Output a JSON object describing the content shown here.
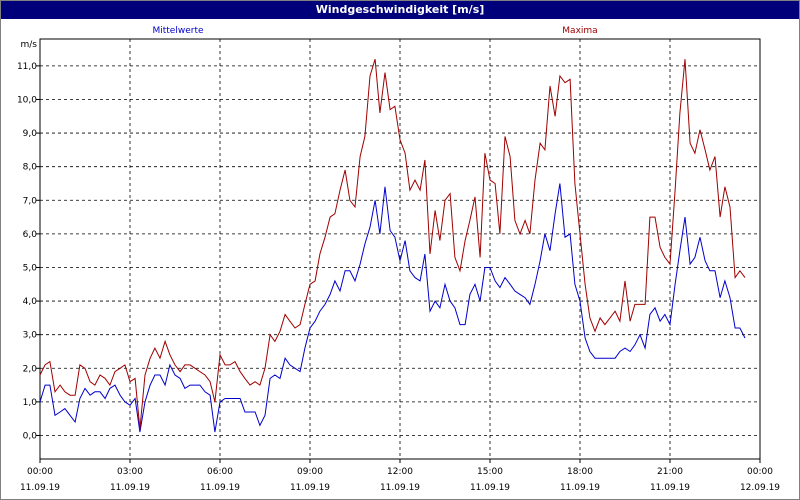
{
  "window": {
    "title": "Windgeschwindigkeit [m/s]"
  },
  "chart_data": {
    "type": "line",
    "title": "Windgeschwindigkeit [m/s]",
    "ylabel": "m/s",
    "ylim": [
      -0.7,
      11.8
    ],
    "yticks": [
      "0,0",
      "1,0",
      "2,0",
      "3,0",
      "4,0",
      "5,0",
      "6,0",
      "7,0",
      "8,0",
      "9,0",
      "10,0",
      "11,0"
    ],
    "xlim_hours": [
      0,
      24
    ],
    "xticks": [
      {
        "time": "00:00",
        "date": "11.09.19"
      },
      {
        "time": "03:00",
        "date": "11.09.19"
      },
      {
        "time": "06:00",
        "date": "11.09.19"
      },
      {
        "time": "09:00",
        "date": "11.09.19"
      },
      {
        "time": "12:00",
        "date": "11.09.19"
      },
      {
        "time": "15:00",
        "date": "11.09.19"
      },
      {
        "time": "18:00",
        "date": "11.09.19"
      },
      {
        "time": "21:00",
        "date": "11.09.19"
      },
      {
        "time": "00:00",
        "date": "12.09.19"
      }
    ],
    "grid": true,
    "series": [
      {
        "name": "Mittelwerte",
        "color": "#0000cc",
        "points": [
          [
            0,
            1.0
          ],
          [
            0.17,
            1.5
          ],
          [
            0.33,
            1.5
          ],
          [
            0.5,
            0.6
          ],
          [
            0.67,
            0.7
          ],
          [
            0.83,
            0.8
          ],
          [
            1.0,
            0.6
          ],
          [
            1.17,
            0.4
          ],
          [
            1.33,
            1.1
          ],
          [
            1.5,
            1.4
          ],
          [
            1.67,
            1.2
          ],
          [
            1.83,
            1.3
          ],
          [
            2.0,
            1.3
          ],
          [
            2.17,
            1.1
          ],
          [
            2.33,
            1.4
          ],
          [
            2.5,
            1.5
          ],
          [
            2.67,
            1.2
          ],
          [
            2.83,
            1.0
          ],
          [
            3.0,
            0.9
          ],
          [
            3.17,
            1.1
          ],
          [
            3.33,
            0.1
          ],
          [
            3.5,
            1.0
          ],
          [
            3.67,
            1.5
          ],
          [
            3.83,
            1.8
          ],
          [
            4.0,
            1.8
          ],
          [
            4.17,
            1.5
          ],
          [
            4.33,
            2.1
          ],
          [
            4.5,
            1.8
          ],
          [
            4.67,
            1.7
          ],
          [
            4.83,
            1.4
          ],
          [
            5.0,
            1.5
          ],
          [
            5.17,
            1.5
          ],
          [
            5.33,
            1.5
          ],
          [
            5.5,
            1.3
          ],
          [
            5.67,
            1.2
          ],
          [
            5.83,
            0.1
          ],
          [
            6.0,
            1.0
          ],
          [
            6.17,
            1.1
          ],
          [
            6.33,
            1.1
          ],
          [
            6.5,
            1.1
          ],
          [
            6.67,
            1.1
          ],
          [
            6.83,
            0.7
          ],
          [
            7.0,
            0.7
          ],
          [
            7.17,
            0.7
          ],
          [
            7.33,
            0.3
          ],
          [
            7.5,
            0.6
          ],
          [
            7.67,
            1.7
          ],
          [
            7.83,
            1.8
          ],
          [
            8.0,
            1.7
          ],
          [
            8.17,
            2.3
          ],
          [
            8.33,
            2.1
          ],
          [
            8.5,
            2.0
          ],
          [
            8.67,
            1.9
          ],
          [
            8.83,
            2.6
          ],
          [
            9.0,
            3.2
          ],
          [
            9.17,
            3.4
          ],
          [
            9.33,
            3.7
          ],
          [
            9.5,
            3.9
          ],
          [
            9.67,
            4.2
          ],
          [
            9.83,
            4.6
          ],
          [
            10.0,
            4.3
          ],
          [
            10.17,
            4.9
          ],
          [
            10.33,
            4.9
          ],
          [
            10.5,
            4.6
          ],
          [
            10.67,
            5.1
          ],
          [
            10.83,
            5.7
          ],
          [
            11.0,
            6.2
          ],
          [
            11.17,
            7.0
          ],
          [
            11.33,
            6.0
          ],
          [
            11.5,
            7.4
          ],
          [
            11.67,
            6.1
          ],
          [
            11.83,
            5.9
          ],
          [
            12.0,
            5.2
          ],
          [
            12.17,
            5.8
          ],
          [
            12.33,
            4.9
          ],
          [
            12.5,
            4.7
          ],
          [
            12.67,
            4.6
          ],
          [
            12.83,
            5.4
          ],
          [
            13.0,
            3.7
          ],
          [
            13.17,
            4.0
          ],
          [
            13.33,
            3.8
          ],
          [
            13.5,
            4.5
          ],
          [
            13.67,
            4.0
          ],
          [
            13.83,
            3.8
          ],
          [
            14.0,
            3.3
          ],
          [
            14.17,
            3.3
          ],
          [
            14.33,
            4.2
          ],
          [
            14.5,
            4.5
          ],
          [
            14.67,
            4.0
          ],
          [
            14.83,
            5.0
          ],
          [
            15.0,
            5.0
          ],
          [
            15.17,
            4.6
          ],
          [
            15.33,
            4.4
          ],
          [
            15.5,
            4.7
          ],
          [
            15.67,
            4.5
          ],
          [
            15.83,
            4.3
          ],
          [
            16.0,
            4.2
          ],
          [
            16.17,
            4.1
          ],
          [
            16.33,
            3.9
          ],
          [
            16.5,
            4.5
          ],
          [
            16.67,
            5.2
          ],
          [
            16.83,
            6.0
          ],
          [
            17.0,
            5.5
          ],
          [
            17.17,
            6.6
          ],
          [
            17.33,
            7.5
          ],
          [
            17.5,
            5.9
          ],
          [
            17.67,
            6.0
          ],
          [
            17.83,
            4.5
          ],
          [
            18.0,
            4.0
          ],
          [
            18.17,
            2.9
          ],
          [
            18.33,
            2.5
          ],
          [
            18.5,
            2.3
          ],
          [
            18.67,
            2.3
          ],
          [
            18.83,
            2.3
          ],
          [
            19.0,
            2.3
          ],
          [
            19.17,
            2.3
          ],
          [
            19.33,
            2.5
          ],
          [
            19.5,
            2.6
          ],
          [
            19.67,
            2.5
          ],
          [
            19.83,
            2.7
          ],
          [
            20.0,
            3.0
          ],
          [
            20.17,
            2.6
          ],
          [
            20.33,
            3.6
          ],
          [
            20.5,
            3.8
          ],
          [
            20.67,
            3.4
          ],
          [
            20.83,
            3.6
          ],
          [
            21.0,
            3.3
          ],
          [
            21.17,
            4.5
          ],
          [
            21.33,
            5.5
          ],
          [
            21.5,
            6.5
          ],
          [
            21.67,
            5.1
          ],
          [
            21.83,
            5.3
          ],
          [
            22.0,
            5.9
          ],
          [
            22.17,
            5.2
          ],
          [
            22.33,
            4.9
          ],
          [
            22.5,
            4.9
          ],
          [
            22.67,
            4.1
          ],
          [
            22.83,
            4.6
          ],
          [
            23.0,
            4.1
          ],
          [
            23.17,
            3.2
          ],
          [
            23.33,
            3.2
          ],
          [
            23.5,
            2.9
          ]
        ]
      },
      {
        "name": "Maxima",
        "color": "#a00000",
        "points": [
          [
            0,
            1.8
          ],
          [
            0.17,
            2.1
          ],
          [
            0.33,
            2.2
          ],
          [
            0.5,
            1.3
          ],
          [
            0.67,
            1.5
          ],
          [
            0.83,
            1.3
          ],
          [
            1.0,
            1.2
          ],
          [
            1.17,
            1.2
          ],
          [
            1.33,
            2.1
          ],
          [
            1.5,
            2.0
          ],
          [
            1.67,
            1.6
          ],
          [
            1.83,
            1.5
          ],
          [
            2.0,
            1.8
          ],
          [
            2.17,
            1.7
          ],
          [
            2.33,
            1.5
          ],
          [
            2.5,
            1.9
          ],
          [
            2.67,
            2.0
          ],
          [
            2.83,
            2.1
          ],
          [
            3.0,
            1.6
          ],
          [
            3.17,
            1.7
          ],
          [
            3.33,
            0.2
          ],
          [
            3.5,
            1.8
          ],
          [
            3.67,
            2.3
          ],
          [
            3.83,
            2.6
          ],
          [
            4.0,
            2.3
          ],
          [
            4.17,
            2.8
          ],
          [
            4.33,
            2.4
          ],
          [
            4.5,
            2.1
          ],
          [
            4.67,
            1.9
          ],
          [
            4.83,
            2.1
          ],
          [
            5.0,
            2.1
          ],
          [
            5.17,
            2.0
          ],
          [
            5.33,
            1.9
          ],
          [
            5.5,
            1.8
          ],
          [
            5.67,
            1.6
          ],
          [
            5.83,
            1.0
          ],
          [
            6.0,
            2.4
          ],
          [
            6.17,
            2.1
          ],
          [
            6.33,
            2.1
          ],
          [
            6.5,
            2.2
          ],
          [
            6.67,
            1.9
          ],
          [
            6.83,
            1.7
          ],
          [
            7.0,
            1.5
          ],
          [
            7.17,
            1.6
          ],
          [
            7.33,
            1.5
          ],
          [
            7.5,
            2.0
          ],
          [
            7.67,
            3.0
          ],
          [
            7.83,
            2.8
          ],
          [
            8.0,
            3.1
          ],
          [
            8.17,
            3.6
          ],
          [
            8.33,
            3.4
          ],
          [
            8.5,
            3.2
          ],
          [
            8.67,
            3.3
          ],
          [
            8.83,
            3.9
          ],
          [
            9.0,
            4.5
          ],
          [
            9.17,
            4.6
          ],
          [
            9.33,
            5.4
          ],
          [
            9.5,
            5.9
          ],
          [
            9.67,
            6.5
          ],
          [
            9.83,
            6.6
          ],
          [
            10.0,
            7.3
          ],
          [
            10.17,
            7.9
          ],
          [
            10.33,
            7.0
          ],
          [
            10.5,
            6.8
          ],
          [
            10.67,
            8.3
          ],
          [
            10.83,
            8.9
          ],
          [
            11.0,
            10.7
          ],
          [
            11.17,
            11.2
          ],
          [
            11.33,
            9.6
          ],
          [
            11.5,
            10.8
          ],
          [
            11.67,
            9.7
          ],
          [
            11.83,
            9.8
          ],
          [
            12.0,
            8.8
          ],
          [
            12.17,
            8.4
          ],
          [
            12.33,
            7.3
          ],
          [
            12.5,
            7.6
          ],
          [
            12.67,
            7.3
          ],
          [
            12.83,
            8.2
          ],
          [
            13.0,
            5.4
          ],
          [
            13.17,
            6.7
          ],
          [
            13.33,
            5.8
          ],
          [
            13.5,
            7.0
          ],
          [
            13.67,
            7.2
          ],
          [
            13.83,
            5.3
          ],
          [
            14.0,
            4.9
          ],
          [
            14.17,
            5.8
          ],
          [
            14.33,
            6.4
          ],
          [
            14.5,
            7.1
          ],
          [
            14.67,
            5.3
          ],
          [
            14.83,
            8.4
          ],
          [
            15.0,
            7.6
          ],
          [
            15.17,
            7.5
          ],
          [
            15.33,
            6.0
          ],
          [
            15.5,
            8.9
          ],
          [
            15.67,
            8.3
          ],
          [
            15.83,
            6.4
          ],
          [
            16.0,
            6.0
          ],
          [
            16.17,
            6.4
          ],
          [
            16.33,
            6.0
          ],
          [
            16.5,
            7.6
          ],
          [
            16.67,
            8.7
          ],
          [
            16.83,
            8.5
          ],
          [
            17.0,
            10.4
          ],
          [
            17.17,
            9.5
          ],
          [
            17.33,
            10.7
          ],
          [
            17.5,
            10.5
          ],
          [
            17.67,
            10.6
          ],
          [
            17.83,
            7.5
          ],
          [
            18.0,
            6.0
          ],
          [
            18.17,
            4.5
          ],
          [
            18.33,
            3.5
          ],
          [
            18.5,
            3.1
          ],
          [
            18.67,
            3.5
          ],
          [
            18.83,
            3.3
          ],
          [
            19.0,
            3.5
          ],
          [
            19.17,
            3.7
          ],
          [
            19.33,
            3.4
          ],
          [
            19.5,
            4.6
          ],
          [
            19.67,
            3.4
          ],
          [
            19.83,
            3.9
          ],
          [
            20.0,
            3.9
          ],
          [
            20.17,
            3.9
          ],
          [
            20.33,
            6.5
          ],
          [
            20.5,
            6.5
          ],
          [
            20.67,
            5.6
          ],
          [
            20.83,
            5.3
          ],
          [
            21.0,
            5.1
          ],
          [
            21.17,
            7.3
          ],
          [
            21.33,
            9.6
          ],
          [
            21.5,
            11.2
          ],
          [
            21.67,
            8.7
          ],
          [
            21.83,
            8.4
          ],
          [
            22.0,
            9.1
          ],
          [
            22.17,
            8.5
          ],
          [
            22.33,
            7.9
          ],
          [
            22.5,
            8.3
          ],
          [
            22.67,
            6.5
          ],
          [
            22.83,
            7.4
          ],
          [
            23.0,
            6.8
          ],
          [
            23.17,
            4.7
          ],
          [
            23.33,
            4.9
          ],
          [
            23.5,
            4.7
          ]
        ]
      }
    ]
  }
}
